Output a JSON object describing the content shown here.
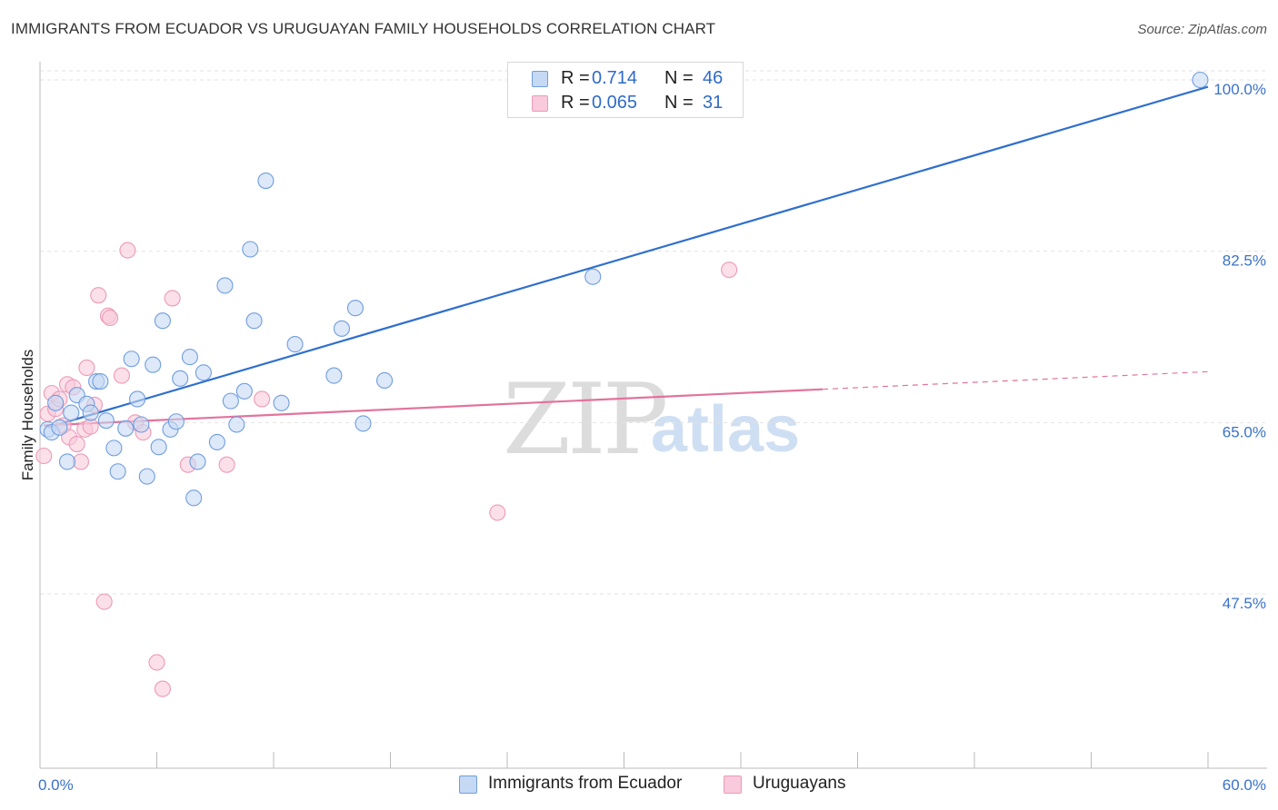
{
  "title": "IMMIGRANTS FROM ECUADOR VS URUGUAYAN FAMILY HOUSEHOLDS CORRELATION CHART",
  "source": "Source: ZipAtlas.com",
  "watermark": {
    "zip": "ZIP",
    "atlas": "atlas"
  },
  "colors": {
    "blue": "#2f6fce",
    "blue_fill": "#c6d9f4",
    "blue_stroke": "#6f9ddf",
    "pink": "#e2739c",
    "pink_fill": "#f8cadb",
    "pink_stroke": "#ec9ab8",
    "tick_text": "#3a72c9"
  },
  "legend_top": [
    {
      "r_label": "R =",
      "r_value": "0.714",
      "n_label": "N =",
      "n_value": "46"
    },
    {
      "r_label": "R =",
      "r_value": "0.065",
      "n_label": "N =",
      "n_value": "31"
    }
  ],
  "chart_data": {
    "type": "scatter",
    "title": "IMMIGRANTS FROM ECUADOR VS URUGUAYAN FAMILY HOUSEHOLDS CORRELATION CHART",
    "xlabel": "",
    "ylabel": "Family Households",
    "xlim": [
      0,
      60
    ],
    "ylim": [
      30,
      101.5
    ],
    "x_tick_labels": [
      "0.0%",
      "60.0%"
    ],
    "y_ticks": [
      47.5,
      65.0,
      82.5,
      100.0
    ],
    "y_tick_labels": [
      "47.5%",
      "65.0%",
      "82.5%",
      "100.0%"
    ],
    "grid": true,
    "legend": "bottom-center",
    "series": [
      {
        "name": "Immigrants from Ecuador",
        "color": "blue",
        "trend": {
          "x": [
            0.4,
            60
          ],
          "y": [
            64.5,
            99.3
          ]
        },
        "points": [
          {
            "x": 0.4,
            "y": 64.3
          },
          {
            "x": 0.6,
            "y": 64.0
          },
          {
            "x": 0.8,
            "y": 67.0
          },
          {
            "x": 1.0,
            "y": 64.5
          },
          {
            "x": 1.4,
            "y": 61.0
          },
          {
            "x": 1.6,
            "y": 66.0
          },
          {
            "x": 1.9,
            "y": 67.8
          },
          {
            "x": 2.4,
            "y": 66.9
          },
          {
            "x": 2.6,
            "y": 66.0
          },
          {
            "x": 2.9,
            "y": 69.2
          },
          {
            "x": 3.1,
            "y": 69.2
          },
          {
            "x": 3.4,
            "y": 65.2
          },
          {
            "x": 3.8,
            "y": 62.4
          },
          {
            "x": 4.0,
            "y": 60.0
          },
          {
            "x": 4.4,
            "y": 64.4
          },
          {
            "x": 4.7,
            "y": 71.5
          },
          {
            "x": 5.0,
            "y": 67.4
          },
          {
            "x": 5.2,
            "y": 64.8
          },
          {
            "x": 5.5,
            "y": 59.5
          },
          {
            "x": 5.8,
            "y": 70.9
          },
          {
            "x": 6.1,
            "y": 62.5
          },
          {
            "x": 6.3,
            "y": 75.4
          },
          {
            "x": 6.7,
            "y": 64.3
          },
          {
            "x": 7.0,
            "y": 65.1
          },
          {
            "x": 7.2,
            "y": 69.5
          },
          {
            "x": 7.7,
            "y": 71.7
          },
          {
            "x": 7.9,
            "y": 57.3
          },
          {
            "x": 8.1,
            "y": 61.0
          },
          {
            "x": 8.4,
            "y": 70.1
          },
          {
            "x": 9.1,
            "y": 63.0
          },
          {
            "x": 9.5,
            "y": 79.0
          },
          {
            "x": 9.8,
            "y": 67.2
          },
          {
            "x": 10.1,
            "y": 64.8
          },
          {
            "x": 10.5,
            "y": 68.2
          },
          {
            "x": 10.8,
            "y": 82.7
          },
          {
            "x": 11.0,
            "y": 75.4
          },
          {
            "x": 11.6,
            "y": 89.7
          },
          {
            "x": 12.4,
            "y": 67.0
          },
          {
            "x": 13.1,
            "y": 73.0
          },
          {
            "x": 15.1,
            "y": 69.8
          },
          {
            "x": 15.5,
            "y": 74.6
          },
          {
            "x": 16.2,
            "y": 76.7
          },
          {
            "x": 16.6,
            "y": 64.9
          },
          {
            "x": 17.7,
            "y": 69.3
          },
          {
            "x": 28.4,
            "y": 79.9
          },
          {
            "x": 59.6,
            "y": 100.0
          }
        ]
      },
      {
        "name": "Uruguayans",
        "color": "pink",
        "trend": {
          "x": [
            0.2,
            40.2
          ],
          "y": [
            64.7,
            68.4
          ]
        },
        "trend_dashed": {
          "x": [
            40.2,
            60
          ],
          "y": [
            68.4,
            70.2
          ]
        },
        "points": [
          {
            "x": 0.2,
            "y": 61.6
          },
          {
            "x": 0.4,
            "y": 65.9
          },
          {
            "x": 0.6,
            "y": 68.0
          },
          {
            "x": 0.8,
            "y": 66.4
          },
          {
            "x": 1.0,
            "y": 67.4
          },
          {
            "x": 1.2,
            "y": 64.7
          },
          {
            "x": 1.4,
            "y": 68.9
          },
          {
            "x": 1.5,
            "y": 63.5
          },
          {
            "x": 1.7,
            "y": 68.6
          },
          {
            "x": 1.9,
            "y": 62.8
          },
          {
            "x": 2.1,
            "y": 61.0
          },
          {
            "x": 2.3,
            "y": 64.3
          },
          {
            "x": 2.4,
            "y": 70.6
          },
          {
            "x": 2.6,
            "y": 64.6
          },
          {
            "x": 2.8,
            "y": 66.8
          },
          {
            "x": 3.0,
            "y": 78.0
          },
          {
            "x": 3.3,
            "y": 46.7
          },
          {
            "x": 3.5,
            "y": 75.9
          },
          {
            "x": 3.6,
            "y": 75.7
          },
          {
            "x": 4.2,
            "y": 69.8
          },
          {
            "x": 4.5,
            "y": 82.6
          },
          {
            "x": 4.9,
            "y": 65.0
          },
          {
            "x": 5.3,
            "y": 64.0
          },
          {
            "x": 6.0,
            "y": 40.5
          },
          {
            "x": 6.3,
            "y": 37.8
          },
          {
            "x": 6.8,
            "y": 77.7
          },
          {
            "x": 7.6,
            "y": 60.7
          },
          {
            "x": 9.6,
            "y": 60.7
          },
          {
            "x": 11.4,
            "y": 67.4
          },
          {
            "x": 23.5,
            "y": 55.8
          },
          {
            "x": 35.4,
            "y": 80.6
          }
        ]
      }
    ]
  }
}
